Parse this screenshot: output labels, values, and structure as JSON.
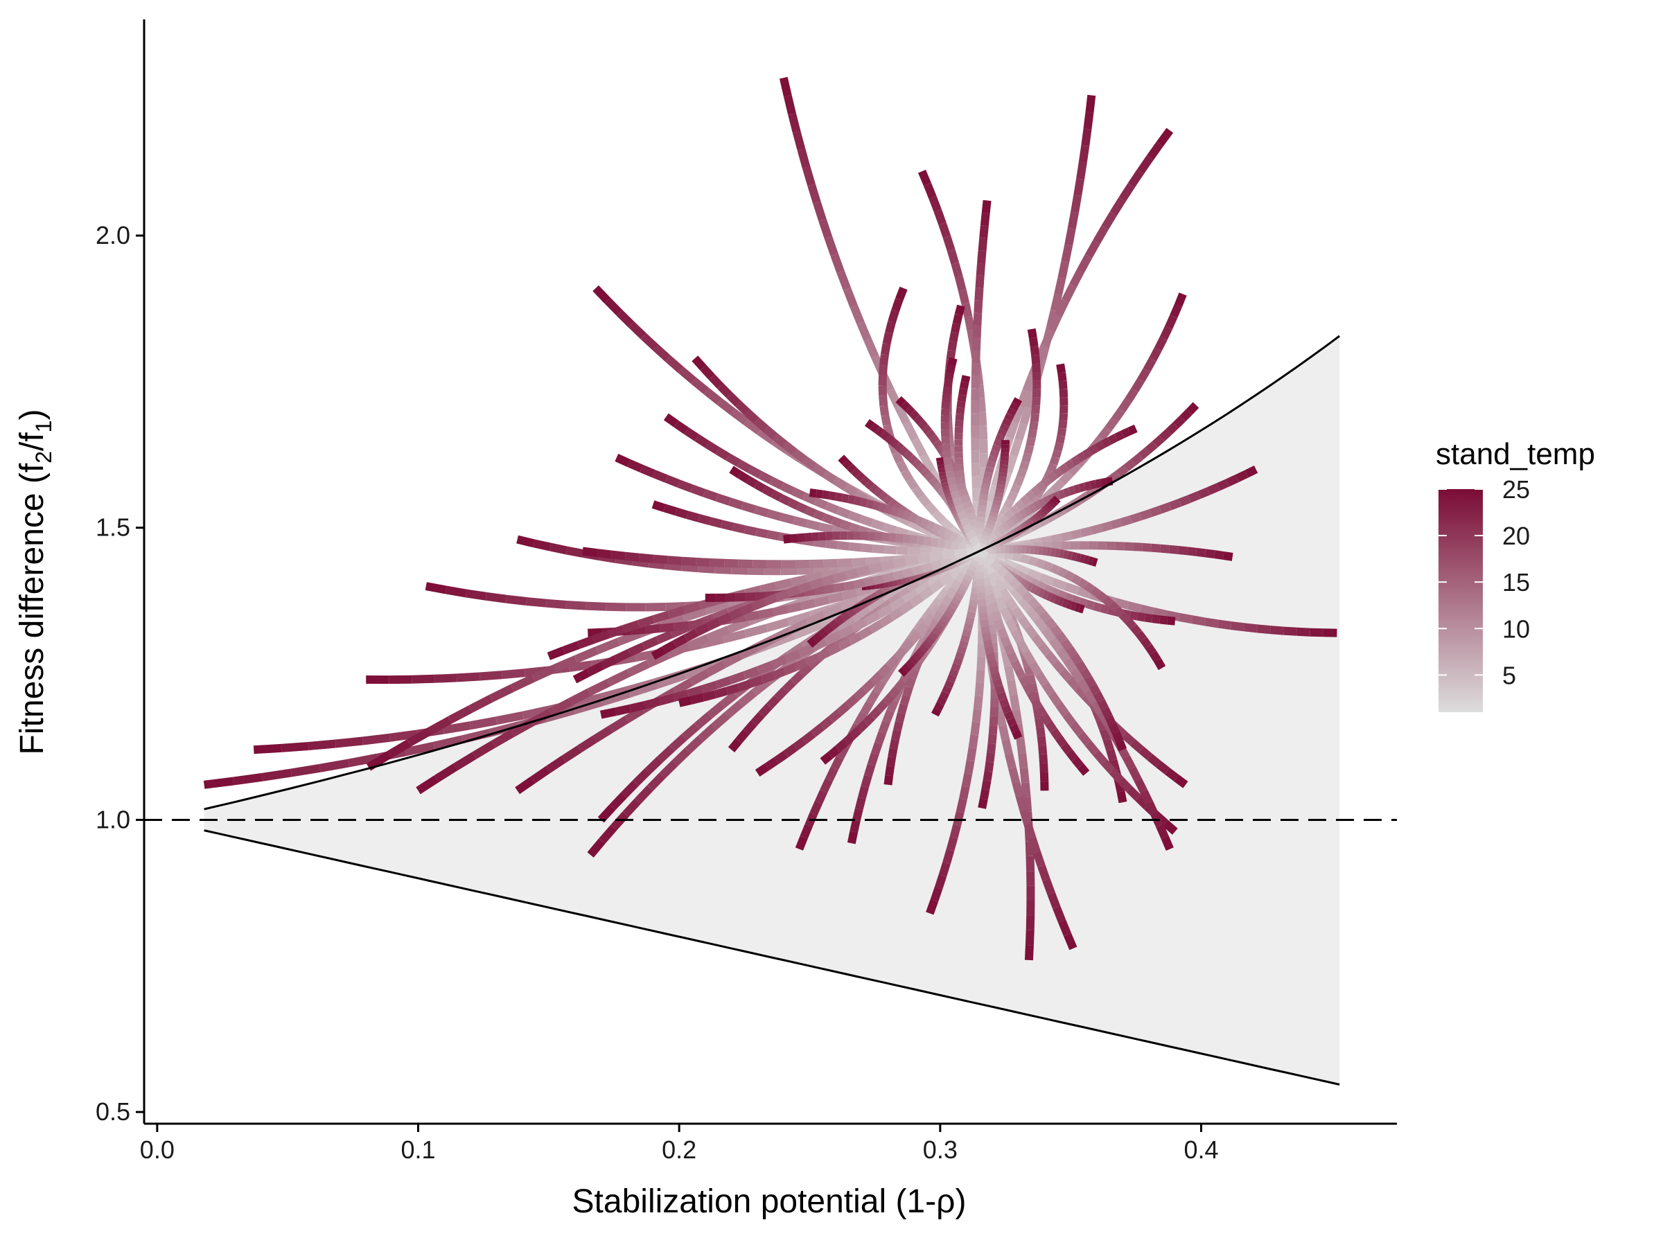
{
  "chart_data": {
    "type": "line",
    "title": "",
    "xlabel": "Stabilization potential (1-ρ)",
    "ylabel_main": "Fitness difference (f",
    "ylabel_sub2": "2",
    "ylabel_slash": "/f",
    "ylabel_sub1": "1",
    "ylabel_close": ")",
    "xlim": [
      -0.005,
      0.475
    ],
    "ylim": [
      0.48,
      2.37
    ],
    "x_ticks": [
      0.0,
      0.1,
      0.2,
      0.3,
      0.4
    ],
    "x_tick_labels": [
      "0.0",
      "0.1",
      "0.2",
      "0.3",
      "0.4"
    ],
    "y_ticks": [
      0.5,
      1.0,
      1.5,
      2.0
    ],
    "y_tick_labels": [
      "0.5",
      "1.0",
      "1.5",
      "2.0"
    ],
    "grid": false,
    "legend": {
      "title": "stand_temp",
      "position": "right",
      "range": [
        1,
        25
      ],
      "breaks": [
        5,
        10,
        15,
        20,
        25
      ],
      "break_labels": [
        "5",
        "10",
        "15",
        "20",
        "25"
      ],
      "low_color": "#dddddd",
      "high_color": "#7b0c35"
    },
    "reference_line": {
      "y": 1.0,
      "style": "dashed"
    },
    "coexistence_region": {
      "fill": "#eeeeee",
      "x_range": [
        0.018,
        0.453
      ],
      "upper_boundary": "1/(1-x)",
      "lower_boundary": "1-x"
    },
    "trajectory_center": {
      "x": 0.315,
      "y": 1.46
    },
    "trajectories": [
      {
        "start": [
          0.24,
          2.27
        ],
        "bend": 0.04
      },
      {
        "start": [
          0.358,
          2.24
        ],
        "bend": -0.03
      },
      {
        "start": [
          0.388,
          2.18
        ],
        "bend": 0.05
      },
      {
        "start": [
          0.293,
          2.11
        ],
        "bend": -0.06
      },
      {
        "start": [
          0.318,
          2.06
        ],
        "bend": 0.02
      },
      {
        "start": [
          0.168,
          1.91
        ],
        "bend": 0.05
      },
      {
        "start": [
          0.286,
          1.91
        ],
        "bend": 0.18
      },
      {
        "start": [
          0.393,
          1.9
        ],
        "bend": -0.07
      },
      {
        "start": [
          0.308,
          1.88
        ],
        "bend": 0.08
      },
      {
        "start": [
          0.335,
          1.84
        ],
        "bend": -0.1
      },
      {
        "start": [
          0.206,
          1.79
        ],
        "bend": 0.06
      },
      {
        "start": [
          0.346,
          1.78
        ],
        "bend": -0.15
      },
      {
        "start": [
          0.284,
          1.72
        ],
        "bend": -0.08
      },
      {
        "start": [
          0.398,
          1.71
        ],
        "bend": -0.05
      },
      {
        "start": [
          0.195,
          1.69
        ],
        "bend": 0.05
      },
      {
        "start": [
          0.375,
          1.67
        ],
        "bend": 0.06
      },
      {
        "start": [
          0.176,
          1.62
        ],
        "bend": 0.04
      },
      {
        "start": [
          0.421,
          1.6
        ],
        "bend": -0.04
      },
      {
        "start": [
          0.22,
          1.6
        ],
        "bend": 0.06
      },
      {
        "start": [
          0.366,
          1.58
        ],
        "bend": 0.08
      },
      {
        "start": [
          0.138,
          1.48
        ],
        "bend": 0.05
      },
      {
        "start": [
          0.412,
          1.45
        ],
        "bend": 0.03
      },
      {
        "start": [
          0.103,
          1.4
        ],
        "bend": 0.06
      },
      {
        "start": [
          0.452,
          1.32
        ],
        "bend": -0.05
      },
      {
        "start": [
          0.39,
          1.34
        ],
        "bend": -0.06
      },
      {
        "start": [
          0.08,
          1.24
        ],
        "bend": 0.05
      },
      {
        "start": [
          0.385,
          1.26
        ],
        "bend": 0.12
      },
      {
        "start": [
          0.037,
          1.12
        ],
        "bend": 0.05
      },
      {
        "start": [
          0.018,
          1.06
        ],
        "bend": 0.04
      },
      {
        "start": [
          0.081,
          1.09
        ],
        "bend": -0.05
      },
      {
        "start": [
          0.1,
          1.05
        ],
        "bend": -0.04
      },
      {
        "start": [
          0.138,
          1.05
        ],
        "bend": -0.03
      },
      {
        "start": [
          0.17,
          1.0
        ],
        "bend": -0.05
      },
      {
        "start": [
          0.166,
          0.94
        ],
        "bend": -0.05
      },
      {
        "start": [
          0.246,
          0.95
        ],
        "bend": -0.04
      },
      {
        "start": [
          0.266,
          0.96
        ],
        "bend": -0.05
      },
      {
        "start": [
          0.296,
          0.84
        ],
        "bend": 0.05
      },
      {
        "start": [
          0.334,
          0.76
        ],
        "bend": 0.04
      },
      {
        "start": [
          0.351,
          0.78
        ],
        "bend": -0.04
      },
      {
        "start": [
          0.34,
          1.05
        ],
        "bend": 0.06
      },
      {
        "start": [
          0.37,
          1.03
        ],
        "bend": 0.08
      },
      {
        "start": [
          0.394,
          1.06
        ],
        "bend": -0.05
      },
      {
        "start": [
          0.39,
          0.98
        ],
        "bend": -0.06
      },
      {
        "start": [
          0.388,
          0.95
        ],
        "bend": 0.04
      },
      {
        "start": [
          0.316,
          1.02
        ],
        "bend": 0.05
      },
      {
        "start": [
          0.356,
          1.08
        ],
        "bend": -0.06
      },
      {
        "start": [
          0.255,
          1.1
        ],
        "bend": 0.06
      },
      {
        "start": [
          0.22,
          1.12
        ],
        "bend": -0.05
      },
      {
        "start": [
          0.17,
          1.18
        ],
        "bend": 0.05
      },
      {
        "start": [
          0.16,
          1.24
        ],
        "bend": -0.04
      },
      {
        "start": [
          0.165,
          1.32
        ],
        "bend": 0.04
      },
      {
        "start": [
          0.15,
          1.28
        ],
        "bend": -0.03
      },
      {
        "start": [
          0.2,
          1.2
        ],
        "bend": 0.06
      },
      {
        "start": [
          0.23,
          1.08
        ],
        "bend": 0.05
      },
      {
        "start": [
          0.28,
          1.06
        ],
        "bend": -0.06
      },
      {
        "start": [
          0.298,
          1.18
        ],
        "bend": 0.05
      },
      {
        "start": [
          0.31,
          1.76
        ],
        "bend": 0.07
      },
      {
        "start": [
          0.272,
          1.68
        ],
        "bend": -0.06
      },
      {
        "start": [
          0.262,
          1.62
        ],
        "bend": 0.05
      },
      {
        "start": [
          0.25,
          1.56
        ],
        "bend": -0.05
      },
      {
        "start": [
          0.19,
          1.54
        ],
        "bend": 0.04
      },
      {
        "start": [
          0.163,
          1.46
        ],
        "bend": 0.03
      },
      {
        "start": [
          0.24,
          1.48
        ],
        "bend": -0.04
      },
      {
        "start": [
          0.36,
          1.44
        ],
        "bend": 0.05
      },
      {
        "start": [
          0.345,
          1.55
        ],
        "bend": -0.05
      },
      {
        "start": [
          0.33,
          1.72
        ],
        "bend": 0.06
      },
      {
        "start": [
          0.355,
          1.36
        ],
        "bend": -0.05
      },
      {
        "start": [
          0.37,
          1.12
        ],
        "bend": 0.06
      },
      {
        "start": [
          0.33,
          1.14
        ],
        "bend": -0.05
      },
      {
        "start": [
          0.285,
          1.25
        ],
        "bend": 0.05
      },
      {
        "start": [
          0.25,
          1.3
        ],
        "bend": -0.05
      },
      {
        "start": [
          0.27,
          1.4
        ],
        "bend": 0.05
      },
      {
        "start": [
          0.21,
          1.38
        ],
        "bend": 0.04
      },
      {
        "start": [
          0.19,
          1.28
        ],
        "bend": -0.05
      },
      {
        "start": [
          0.3,
          1.62
        ],
        "bend": 0.06
      },
      {
        "start": [
          0.325,
          1.65
        ],
        "bend": -0.05
      },
      {
        "start": [
          0.305,
          1.79
        ],
        "bend": 0.09
      }
    ]
  }
}
